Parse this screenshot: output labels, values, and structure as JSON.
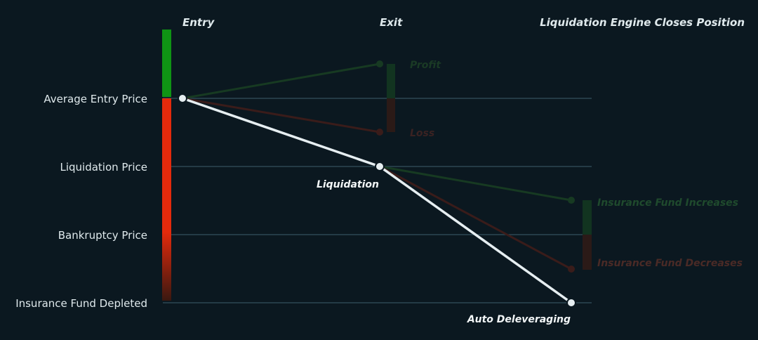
{
  "columns": {
    "entry": "Entry",
    "exit": "Exit",
    "close": "Liquidation Engine Closes Position"
  },
  "rows": {
    "average_entry": "Average Entry Price",
    "liquidation": "Liquidation Price",
    "bankruptcy": "Bankruptcy Price",
    "fund_depleted": "Insurance Fund Depleted"
  },
  "annotations": {
    "profit": "Profit",
    "loss": "Loss",
    "liquidation": "Liquidation",
    "fund_increases": "Insurance Fund Increases",
    "fund_decreases": "Insurance Fund Decreases",
    "auto_deleveraging": "Auto Deleveraging"
  },
  "colors": {
    "background": "#0b1820",
    "gridline": "#2c4752",
    "profit_green": "#0f9414",
    "loss_red": "#e42a0c",
    "path_white": "#e6eef1",
    "faint_green": "#173a22",
    "faint_red": "#3a1c1a"
  }
}
